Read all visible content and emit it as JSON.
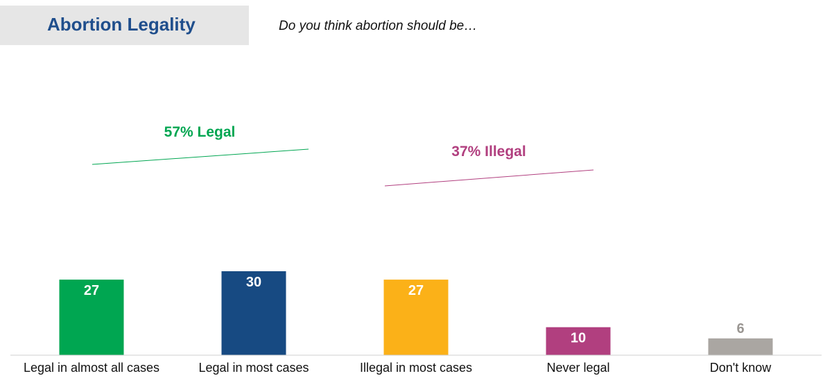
{
  "header": {
    "title": "Abortion Legality",
    "question": "Do you think abortion should be…"
  },
  "chart_data": {
    "type": "bar",
    "categories": [
      "Legal in almost all cases",
      "Legal in most cases",
      "Illegal in most cases",
      "Never legal",
      "Don't know"
    ],
    "values": [
      27,
      30,
      27,
      10,
      6
    ],
    "colors": [
      "#00a651",
      "#174a82",
      "#fbb118",
      "#b13f7f",
      "#aaa6a2"
    ],
    "label_colors": [
      "#ffffff",
      "#ffffff",
      "#ffffff",
      "#ffffff",
      "#9a9692"
    ],
    "ylim": [
      0,
      30
    ],
    "annotations": [
      {
        "text": "57% Legal",
        "color": "#00a651"
      },
      {
        "text": "37% Illegal",
        "color": "#b13f7f"
      }
    ]
  }
}
